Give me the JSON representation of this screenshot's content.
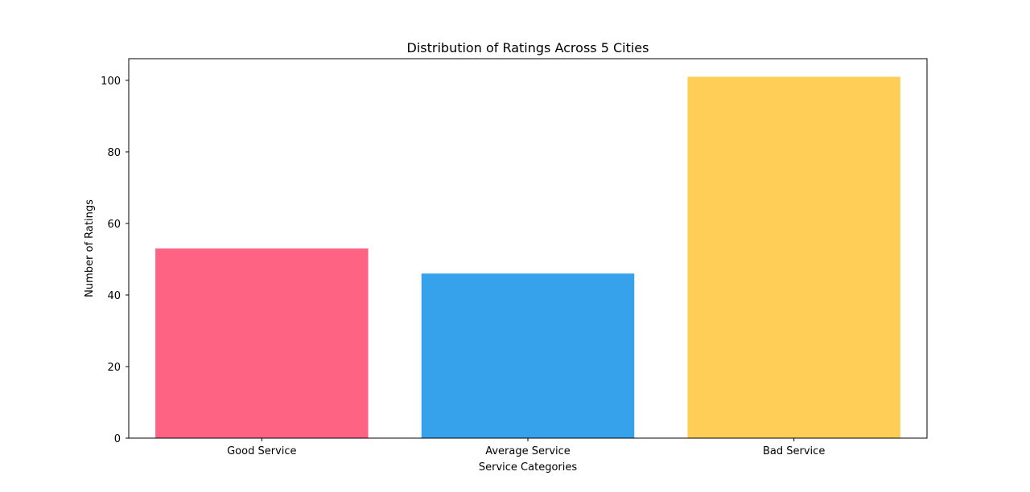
{
  "chart_data": {
    "type": "bar",
    "title": "Distribution of Ratings Across 5 Cities",
    "xlabel": "Service Categories",
    "ylabel": "Number of Ratings",
    "categories": [
      "Good Service",
      "Average Service",
      "Bad Service"
    ],
    "values": [
      53,
      46,
      101
    ],
    "colors": [
      "#ff6384",
      "#36a2eb",
      "#ffce56"
    ],
    "ylim": [
      0,
      106.05
    ],
    "yticks": [
      0,
      20,
      40,
      60,
      80,
      100
    ],
    "grid": false,
    "legend": "none"
  }
}
